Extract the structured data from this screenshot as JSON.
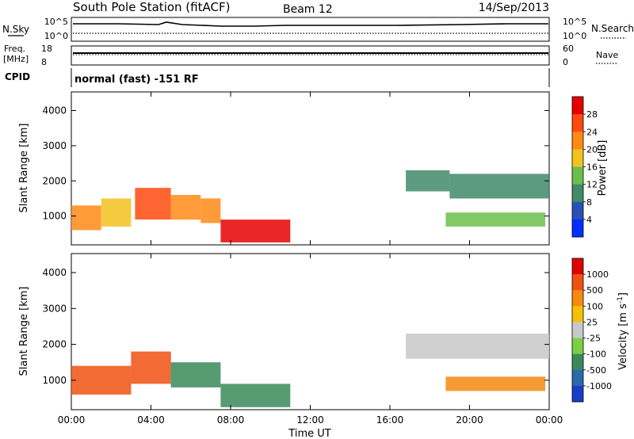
{
  "header": {
    "title": "South Pole Station (fitACF)",
    "beam": "Beam 12",
    "date": "14/Sep/2013"
  },
  "noise_panel": {
    "left_label": "N.Sky",
    "left_ticks": [
      "10^5",
      "10^0"
    ],
    "right_ticks": [
      "10^5",
      "10^0"
    ],
    "right_label": "N.Search"
  },
  "freq_panel": {
    "left_label_line1": "Freq.",
    "left_label_line2": "[MHz]",
    "left_ticks": [
      "18",
      "8"
    ],
    "right_ticks": [
      "60",
      "0"
    ],
    "right_label": "Nave"
  },
  "cpid_panel": {
    "label": "CPID",
    "text": "normal (fast) -151 RF"
  },
  "chart_data": [
    {
      "type": "heatmap",
      "name": "power",
      "ylabel": "Slant Range [km]",
      "ylim": [
        180,
        4530
      ],
      "yticks": [
        "1000",
        "2000",
        "3000",
        "4000"
      ],
      "xticks": [
        "00:00",
        "04:00",
        "08:00",
        "12:00",
        "16:00",
        "20:00",
        "00:00"
      ],
      "colorbar_label": "Power [dB]",
      "colorbar_ticks": [
        "4",
        "8",
        "12",
        "16",
        "20",
        "24",
        "28"
      ],
      "colorbar_colors": [
        "#0030ff",
        "#2850b8",
        "#408a6a",
        "#6cbe4c",
        "#f2c21e",
        "#ff8a16",
        "#ff4a0e",
        "#e60000"
      ],
      "regions": [
        {
          "t0": 0.0,
          "t1": 1.5,
          "r0": 600,
          "r1": 1300,
          "level": 5
        },
        {
          "t0": 1.5,
          "t1": 3.0,
          "r0": 700,
          "r1": 1500,
          "level": 4
        },
        {
          "t0": 3.2,
          "t1": 5.0,
          "r0": 900,
          "r1": 1800,
          "level": 6
        },
        {
          "t0": 5.0,
          "t1": 6.5,
          "r0": 900,
          "r1": 1600,
          "level": 5
        },
        {
          "t0": 6.5,
          "t1": 7.5,
          "r0": 800,
          "r1": 1500,
          "level": 5
        },
        {
          "t0": 7.5,
          "t1": 11.0,
          "r0": 250,
          "r1": 900,
          "level": 7
        },
        {
          "t0": 16.8,
          "t1": 19.0,
          "r0": 1700,
          "r1": 2300,
          "level": 2
        },
        {
          "t0": 19.0,
          "t1": 24.0,
          "r0": 1500,
          "r1": 2200,
          "level": 2
        },
        {
          "t0": 18.8,
          "t1": 23.8,
          "r0": 700,
          "r1": 1100,
          "level": 3
        }
      ]
    },
    {
      "type": "heatmap",
      "name": "velocity",
      "ylabel": "Slant Range [km]",
      "xlabel": "Time UT",
      "ylim": [
        180,
        4530
      ],
      "yticks": [
        "1000",
        "2000",
        "3000",
        "4000"
      ],
      "xticks": [
        "00:00",
        "04:00",
        "08:00",
        "12:00",
        "16:00",
        "20:00",
        "00:00"
      ],
      "colorbar_label": "Velocity [m s",
      "colorbar_label_sup": "-1",
      "colorbar_label_end": "]",
      "colorbar_ticks": [
        "1000",
        "500",
        "100",
        "25",
        "-25",
        "-100",
        "-500",
        "-1000"
      ],
      "colorbar_colors": [
        "#1a3cc8",
        "#2a6aaa",
        "#3a8a5a",
        "#7ad040",
        "#c8c8c8",
        "#f5c000",
        "#f58a10",
        "#f05010",
        "#e00000"
      ],
      "regions": [
        {
          "t0": 0.0,
          "t1": 3.0,
          "r0": 600,
          "r1": 1400,
          "level": 7
        },
        {
          "t0": 3.0,
          "t1": 5.0,
          "r0": 900,
          "r1": 1800,
          "level": 7
        },
        {
          "t0": 5.0,
          "t1": 7.5,
          "r0": 800,
          "r1": 1500,
          "level": 2
        },
        {
          "t0": 7.5,
          "t1": 11.0,
          "r0": 250,
          "r1": 900,
          "level": 2
        },
        {
          "t0": 16.8,
          "t1": 24.0,
          "r0": 1600,
          "r1": 2300,
          "level": 4
        },
        {
          "t0": 18.8,
          "t1": 23.8,
          "r0": 700,
          "r1": 1100,
          "level": 6
        }
      ]
    }
  ]
}
